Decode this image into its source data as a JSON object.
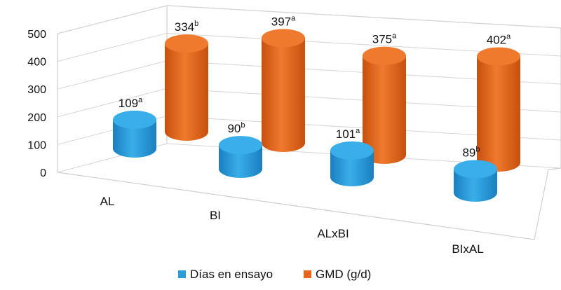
{
  "chart_data": {
    "type": "bar",
    "style": "3d-cylinder",
    "categories": [
      "AL",
      "BI",
      "ALxBI",
      "BIxAL"
    ],
    "series": [
      {
        "name": "Días en ensayo",
        "color": "#2a9cd8",
        "values": [
          109,
          90,
          101,
          89
        ],
        "superscripts": [
          "a",
          "b",
          "a",
          "b"
        ]
      },
      {
        "name": "GMD (g/d)",
        "color": "#e8651a",
        "values": [
          334,
          397,
          375,
          402
        ],
        "superscripts": [
          "b",
          "a",
          "a",
          "a"
        ]
      }
    ],
    "yticks": [
      0,
      100,
      200,
      300,
      400,
      500
    ],
    "ylim": [
      0,
      500
    ],
    "grid": true,
    "legend": "bottom"
  }
}
